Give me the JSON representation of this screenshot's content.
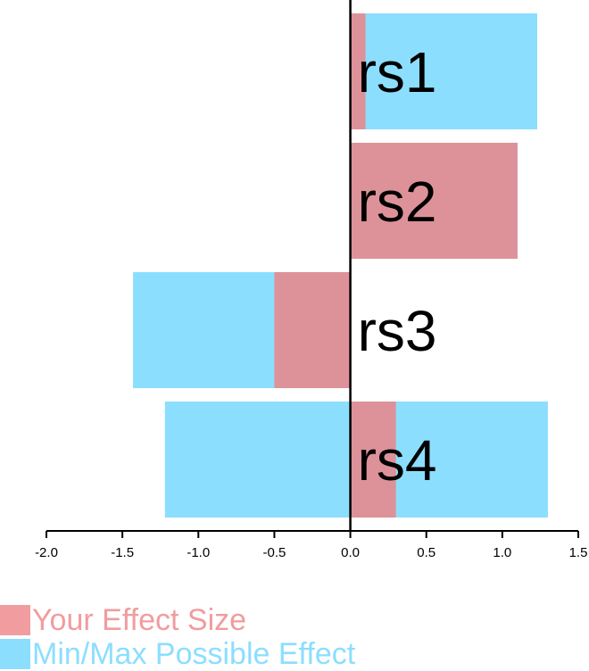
{
  "chart_data": {
    "type": "bar",
    "orientation": "horizontal",
    "categories": [
      "rs1",
      "rs2",
      "rs3",
      "rs4"
    ],
    "series": [
      {
        "name": "Min/Max Possible Effect",
        "color": "#8cdefe",
        "min": [
          0,
          0,
          -1.43,
          -1.22
        ],
        "max": [
          1.23,
          1.1,
          0,
          1.3
        ]
      },
      {
        "name": "Your Effect Size",
        "color": "#dd9299",
        "values": [
          0.1,
          1.1,
          -0.5,
          0.3
        ]
      }
    ],
    "xlim": [
      -2.0,
      1.5
    ],
    "xticks": [
      "-2.0",
      "-1.5",
      "-1.0",
      "-0.5",
      "0.0",
      "0.5",
      "1.0",
      "1.5"
    ],
    "legend_position": "bottom-left",
    "legend_colors": [
      "#f19c9f",
      "#8cdefe"
    ],
    "grid": false
  }
}
